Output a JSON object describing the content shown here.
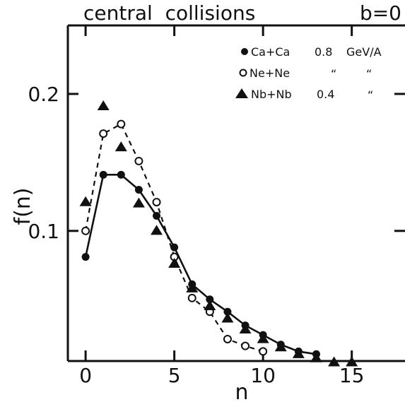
{
  "chart_data": {
    "type": "line",
    "title": "central  collisions",
    "subtitle": "b=0",
    "xlabel": "n",
    "ylabel": "f(n)",
    "xlim": [
      -1,
      18
    ],
    "ylim": [
      0.005,
      0.25
    ],
    "x_ticks": [
      0,
      5,
      10,
      15
    ],
    "x_tick_labels": [
      "0",
      "5",
      "10",
      "15"
    ],
    "y_ticks": [
      0.1,
      0.2
    ],
    "y_tick_labels": [
      "0.1",
      "0.2"
    ],
    "grid": false,
    "legend_position": "top-right",
    "legend": [
      {
        "marker": "filled-circle",
        "label": "Ca+Ca",
        "energy": "0.8",
        "unit": "GeV/A"
      },
      {
        "marker": "open-circle",
        "label": "Ne+Ne",
        "energy": "“",
        "unit": "“"
      },
      {
        "marker": "filled-triangle",
        "label": "Nb+Nb",
        "energy": "0.4",
        "unit": "“"
      }
    ],
    "series": [
      {
        "name": "Ca+Ca",
        "marker": "filled-circle",
        "line": "solid",
        "x": [
          0,
          1,
          2,
          3,
          4,
          5,
          6,
          7,
          8,
          9,
          10,
          11,
          12,
          13
        ],
        "y": [
          0.081,
          0.141,
          0.141,
          0.13,
          0.111,
          0.088,
          0.061,
          0.05,
          0.041,
          0.031,
          0.024,
          0.017,
          0.012,
          0.01
        ]
      },
      {
        "name": "Ne+Ne",
        "marker": "open-circle",
        "line": "dashed",
        "x": [
          0,
          1,
          2,
          3,
          4,
          5,
          6,
          7,
          8,
          9,
          10
        ],
        "y": [
          0.1,
          0.171,
          0.178,
          0.151,
          0.121,
          0.081,
          0.051,
          0.041,
          0.021,
          0.016,
          0.012
        ]
      },
      {
        "name": "Nb+Nb",
        "marker": "filled-triangle",
        "line": "none",
        "x": [
          0,
          1,
          2,
          3,
          4,
          5,
          6,
          7,
          8,
          9,
          10,
          11,
          12,
          13,
          14,
          15
        ],
        "y": [
          0.121,
          0.191,
          0.161,
          0.12,
          0.1,
          0.076,
          0.058,
          0.045,
          0.036,
          0.028,
          0.021,
          0.015,
          0.01,
          0.007,
          0.004,
          0.004
        ]
      }
    ]
  }
}
